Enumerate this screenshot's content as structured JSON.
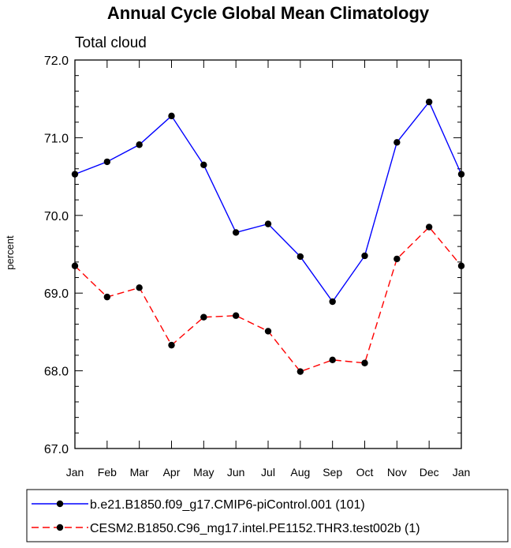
{
  "chart_data": {
    "type": "line",
    "title": "Annual Cycle Global Mean Climatology",
    "subtitle": "Total cloud",
    "xlabel": "",
    "ylabel": "percent",
    "categories": [
      "Jan",
      "Feb",
      "Mar",
      "Apr",
      "May",
      "Jun",
      "Jul",
      "Aug",
      "Sep",
      "Oct",
      "Nov",
      "Dec",
      "Jan"
    ],
    "ylim": [
      67.0,
      72.0
    ],
    "yticks": [
      "67.0",
      "68.0",
      "69.0",
      "70.0",
      "71.0",
      "72.0"
    ],
    "grid": false,
    "legend_position": "bottom",
    "series": [
      {
        "name": "b.e21.B1850.f09_g17.CMIP6-piControl.001 (101)",
        "color": "#0000ff",
        "dash": "solid",
        "values": [
          70.53,
          70.69,
          70.91,
          71.28,
          70.65,
          69.78,
          69.89,
          69.47,
          68.89,
          69.48,
          70.94,
          71.46,
          70.53
        ]
      },
      {
        "name": "CESM2.B1850.C96_mg17.intel.PE1152.THR3.test002b (1)",
        "color": "#ff0000",
        "dash": "dashed",
        "values": [
          69.35,
          68.95,
          69.07,
          68.33,
          68.69,
          68.71,
          68.51,
          67.99,
          68.14,
          68.1,
          69.44,
          69.85,
          69.35
        ]
      }
    ]
  }
}
